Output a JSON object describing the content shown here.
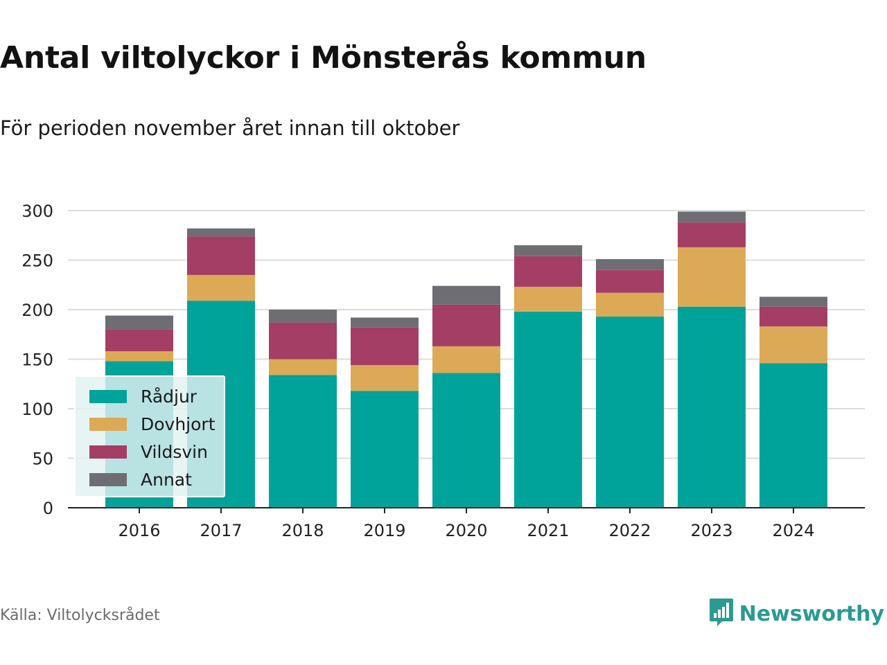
{
  "title": "Antal viltolyckor i Mönsterås kommun",
  "subtitle": "För perioden november året innan till oktober",
  "source": "Källa: Viltolycksrådet",
  "brand": {
    "name": "Newsworthy",
    "icon": "newsworthy-logo-icon",
    "color": "#2a9a92"
  },
  "colors": {
    "Rådjur": "#00a39a",
    "Dovhjort": "#dcaa56",
    "Vildsvin": "#a43e65",
    "Annat": "#6e6d74"
  },
  "chart_data": {
    "type": "bar",
    "stacked": true,
    "categories": [
      "2016",
      "2017",
      "2018",
      "2019",
      "2020",
      "2021",
      "2022",
      "2023",
      "2024"
    ],
    "series": [
      {
        "name": "Rådjur",
        "values": [
          148,
          209,
          134,
          118,
          136,
          198,
          193,
          203,
          146
        ]
      },
      {
        "name": "Dovhjort",
        "values": [
          10,
          26,
          16,
          26,
          27,
          25,
          24,
          60,
          37
        ]
      },
      {
        "name": "Vildsvin",
        "values": [
          22,
          39,
          37,
          38,
          42,
          31,
          23,
          25,
          20
        ]
      },
      {
        "name": "Annat",
        "values": [
          14,
          8,
          13,
          10,
          19,
          11,
          11,
          11,
          10
        ]
      }
    ],
    "yticks": [
      0,
      50,
      100,
      150,
      200,
      250,
      300
    ],
    "ylim": [
      0,
      300
    ],
    "grid": true,
    "legend": "bottom-left"
  }
}
